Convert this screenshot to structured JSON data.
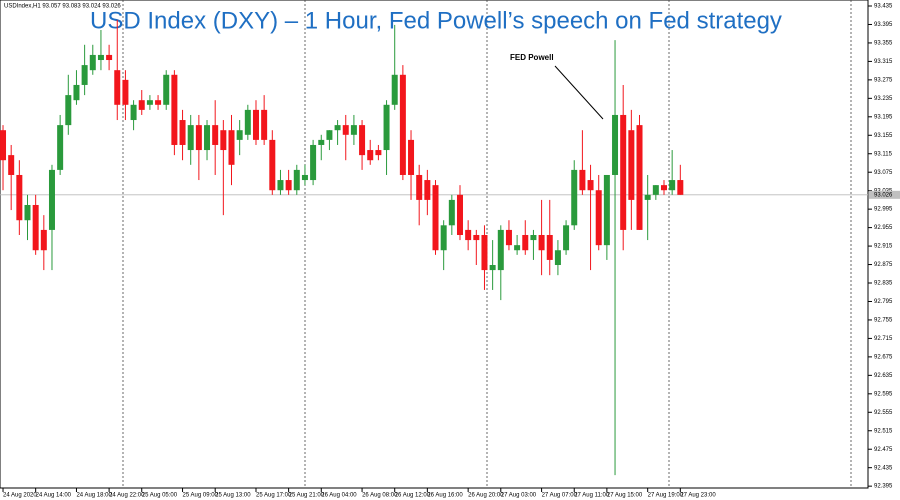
{
  "chart_data": {
    "type": "candlestick",
    "title": "USD Index (DXY) – 1 Hour, Fed Powell’s speech on Fed strategy",
    "info": "USDIndex,H1  93.057 93.083 93.024 93.026",
    "annotation": "FED Powell",
    "up_color": "#2a9a3c",
    "down_color": "#f2161c",
    "open": [
      93.166,
      93.112,
      93.069,
      92.971,
      93.004,
      92.95,
      92.95,
      93.08,
      93.177,
      93.231,
      93.264,
      93.296,
      93.318,
      93.329,
      93.296,
      93.275,
      93.188,
      93.231,
      93.221,
      93.231,
      93.221,
      93.286,
      93.188,
      93.123,
      93.177,
      93.123,
      93.177,
      93.166,
      93.166,
      93.145,
      93.156,
      93.21,
      93.21,
      93.145,
      93.036,
      93.058,
      93.036,
      93.058,
      93.058,
      93.134,
      93.145,
      93.166,
      93.177,
      93.156,
      93.177,
      93.123,
      93.123,
      93.123,
      93.221,
      93.286,
      93.145,
      93.069,
      93.058,
      93.047,
      92.906,
      92.96,
      93.026,
      92.95,
      92.939,
      92.939,
      92.863,
      92.863,
      92.95,
      92.906,
      92.939,
      92.928,
      92.939,
      92.939,
      92.874,
      92.906,
      92.96,
      93.08,
      93.058,
      93.036,
      92.917,
      93.069,
      93.199,
      93.166,
      93.177,
      93.015,
      93.026,
      93.047,
      93.036,
      93.058
    ],
    "high": [
      93.177,
      93.134,
      93.101,
      93.026,
      93.026,
      92.982,
      93.091,
      93.199,
      93.286,
      93.296,
      93.351,
      93.351,
      93.383,
      93.351,
      93.405,
      93.296,
      93.231,
      93.253,
      93.242,
      93.242,
      93.296,
      93.296,
      93.21,
      93.199,
      93.199,
      93.188,
      93.231,
      93.188,
      93.199,
      93.188,
      93.221,
      93.231,
      93.242,
      93.166,
      93.08,
      93.08,
      93.091,
      93.091,
      93.145,
      93.156,
      93.166,
      93.188,
      93.199,
      93.199,
      93.188,
      93.145,
      93.134,
      93.231,
      93.394,
      93.307,
      93.166,
      93.091,
      93.08,
      93.058,
      92.971,
      93.026,
      93.047,
      92.971,
      92.95,
      92.96,
      92.928,
      92.96,
      92.971,
      92.939,
      92.971,
      92.95,
      93.015,
      93.015,
      92.928,
      92.971,
      93.101,
      93.166,
      93.091,
      93.069,
      93.069,
      93.361,
      93.264,
      93.21,
      93.199,
      93.069,
      93.047,
      93.058,
      93.123,
      93.091
    ],
    "low": [
      93.036,
      92.993,
      92.939,
      92.928,
      92.896,
      92.863,
      92.863,
      93.069,
      93.156,
      93.221,
      93.242,
      93.286,
      93.296,
      93.296,
      93.188,
      93.188,
      93.166,
      93.199,
      93.21,
      93.21,
      93.21,
      93.112,
      93.101,
      93.091,
      93.058,
      93.101,
      93.069,
      92.982,
      93.047,
      93.112,
      93.145,
      93.134,
      93.134,
      93.026,
      93.026,
      93.026,
      93.026,
      93.047,
      93.047,
      93.101,
      93.123,
      93.134,
      93.101,
      93.134,
      93.08,
      93.091,
      93.101,
      93.069,
      93.21,
      93.058,
      93.015,
      92.96,
      92.982,
      92.896,
      92.863,
      92.939,
      92.928,
      92.906,
      92.874,
      92.82,
      92.82,
      92.798,
      92.906,
      92.896,
      92.896,
      92.885,
      92.852,
      92.852,
      92.852,
      92.896,
      92.95,
      93.026,
      92.863,
      92.906,
      92.885,
      92.419,
      92.906,
      92.95,
      92.95,
      92.928,
      93.015,
      93.026,
      93.026,
      93.026
    ],
    "close": [
      93.101,
      93.069,
      92.971,
      93.004,
      92.906,
      92.906,
      93.08,
      93.177,
      93.242,
      93.264,
      93.307,
      93.329,
      93.329,
      93.318,
      93.221,
      93.221,
      93.221,
      93.21,
      93.231,
      93.221,
      93.286,
      93.134,
      93.134,
      93.177,
      93.123,
      93.177,
      93.134,
      93.123,
      93.091,
      93.166,
      93.21,
      93.145,
      93.145,
      93.036,
      93.058,
      93.036,
      93.08,
      93.069,
      93.134,
      93.145,
      93.166,
      93.177,
      93.156,
      93.177,
      93.112,
      93.101,
      93.112,
      93.221,
      93.286,
      93.069,
      93.069,
      93.015,
      93.015,
      92.906,
      92.96,
      93.015,
      92.939,
      92.928,
      92.928,
      92.863,
      92.874,
      92.95,
      92.917,
      92.917,
      92.906,
      92.939,
      92.906,
      92.885,
      92.906,
      92.96,
      93.08,
      93.036,
      93.036,
      92.917,
      93.069,
      93.199,
      92.95,
      93.015,
      92.95,
      93.026,
      93.047,
      93.036,
      93.058,
      93.026
    ],
    "last_price": 93.026,
    "xlim": [
      -0.37,
      106.0
    ],
    "ylim": [
      92.391,
      93.448
    ],
    "yticks": [
      93.435,
      93.395,
      93.355,
      93.315,
      93.275,
      93.235,
      93.195,
      93.155,
      93.115,
      93.075,
      93.035,
      92.995,
      92.955,
      92.915,
      92.875,
      92.835,
      92.795,
      92.755,
      92.715,
      92.675,
      92.635,
      92.595,
      92.555,
      92.515,
      92.475,
      92.435,
      92.395
    ],
    "xticks": [
      {
        "value": 0,
        "label": "24 Aug 2020"
      },
      {
        "value": 4,
        "label": "24 Aug 14:00"
      },
      {
        "value": 9,
        "label": "24 Aug 18:00"
      },
      {
        "value": 13,
        "label": "24 Aug 22:00"
      },
      {
        "value": 17,
        "label": "25 Aug 05:00"
      },
      {
        "value": 22,
        "label": "25 Aug 09:00"
      },
      {
        "value": 26,
        "label": "25 Aug 13:00"
      },
      {
        "value": 31,
        "label": "25 Aug 17:00"
      },
      {
        "value": 35,
        "label": "25 Aug 21:00"
      },
      {
        "value": 39,
        "label": "26 Aug 04:00"
      },
      {
        "value": 44,
        "label": "26 Aug 08:00"
      },
      {
        "value": 48,
        "label": "26 Aug 12:00"
      },
      {
        "value": 52,
        "label": "26 Aug 16:00"
      },
      {
        "value": 57,
        "label": "26 Aug 20:00"
      },
      {
        "value": 61,
        "label": "27 Aug 03:00"
      },
      {
        "value": 66,
        "label": "27 Aug 07:00"
      },
      {
        "value": 70,
        "label": "27 Aug 11:00"
      },
      {
        "value": 74,
        "label": "27 Aug 15:00"
      },
      {
        "value": 79,
        "label": "27 Aug 19:00"
      },
      {
        "value": 83,
        "label": "27 Aug 23:00"
      }
    ]
  }
}
